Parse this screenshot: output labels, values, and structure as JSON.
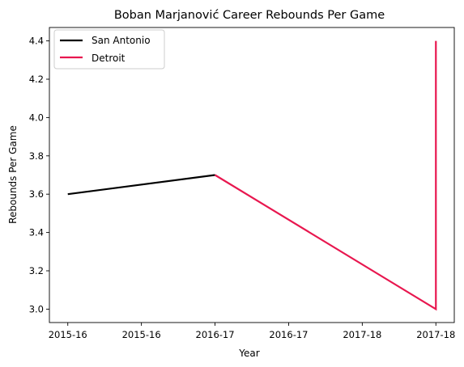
{
  "chart_data": {
    "type": "line",
    "title": "Boban Marjanović Career Rebounds Per Game",
    "xlabel": "Year",
    "ylabel": "Rebounds Per Game",
    "x_ticks": [
      "2015-16",
      "2015-16",
      "2016-17",
      "2016-17",
      "2017-18",
      "2017-18"
    ],
    "x_tick_positions": [
      0,
      0.5,
      1,
      1.5,
      2,
      2.5
    ],
    "xlim": [
      -0.125,
      2.625
    ],
    "ylim": [
      2.93,
      4.47
    ],
    "y_ticks": [
      3.0,
      3.2,
      3.4,
      3.6,
      3.8,
      4.0,
      4.2,
      4.4
    ],
    "grid": false,
    "legend_position": "top-left",
    "series": [
      {
        "name": "San Antonio",
        "color": "#000000",
        "points": [
          {
            "x": "2015-16",
            "pos": 0,
            "y": 3.6
          },
          {
            "x": "2016-17",
            "pos": 1,
            "y": 3.7
          }
        ]
      },
      {
        "name": "Detroit",
        "color": "#e8174f",
        "points": [
          {
            "x": "2016-17",
            "pos": 1,
            "y": 3.7
          },
          {
            "x": "2017-18",
            "pos": 2.5,
            "y": 3.0
          },
          {
            "x": "2017-18",
            "pos": 2.5,
            "y": 4.4
          }
        ]
      }
    ]
  }
}
